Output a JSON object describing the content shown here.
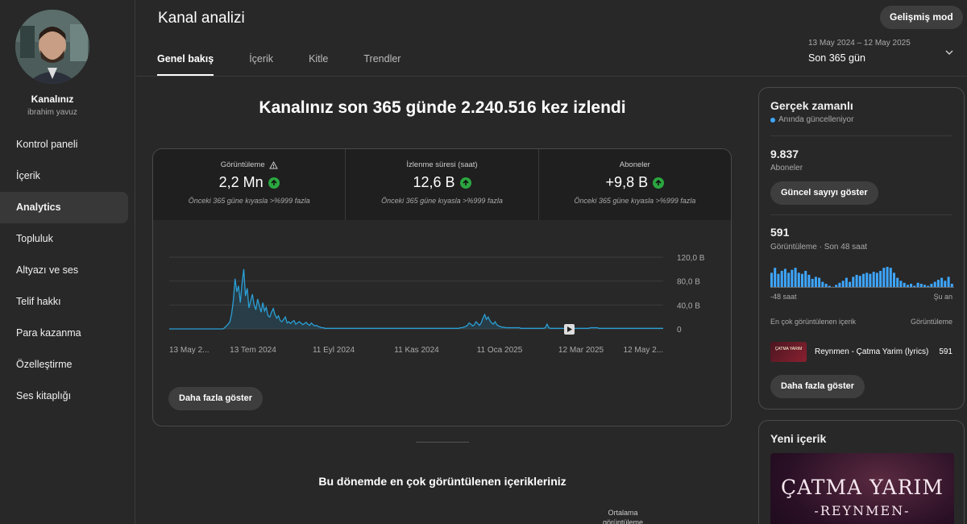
{
  "sidebar": {
    "channel_name": "Kanalınız",
    "channel_handle": "ibrahim yavuz",
    "items": [
      {
        "label": "Kontrol paneli"
      },
      {
        "label": "İçerik"
      },
      {
        "label": "Analytics",
        "active": true
      },
      {
        "label": "Topluluk"
      },
      {
        "label": "Altyazı ve ses"
      },
      {
        "label": "Telif hakkı"
      },
      {
        "label": "Para kazanma"
      },
      {
        "label": "Özelleştirme"
      },
      {
        "label": "Ses kitaplığı"
      }
    ]
  },
  "header": {
    "title": "Kanal analizi",
    "advanced_mode": "Gelişmiş mod",
    "tabs": [
      {
        "label": "Genel bakış",
        "active": true
      },
      {
        "label": "İçerik"
      },
      {
        "label": "Kitle"
      },
      {
        "label": "Trendler"
      }
    ],
    "date_range": "13 May 2024 – 12 May 2025",
    "date_label": "Son 365 gün"
  },
  "main": {
    "headline": "Kanalınız son 365 günde 2.240.516 kez izlendi",
    "metrics": [
      {
        "label": "Görüntüleme",
        "value": "2,2 Mn",
        "comparison": "Önceki 365 güne kıyasla >%999 fazla"
      },
      {
        "label": "İzlenme süresi (saat)",
        "value": "12,6 B",
        "comparison": "Önceki 365 güne kıyasla >%999 fazla"
      },
      {
        "label": "Aboneler",
        "value": "+9,8 B",
        "comparison": "Önceki 365 güne kıyasla >%999 fazla"
      }
    ],
    "more_button": "Daha fazla göster",
    "section_title": "Bu dönemde en çok görüntülenen içerikleriniz",
    "avg_col_line1": "Ortalama",
    "avg_col_line2": "görüntüleme"
  },
  "chart_data": {
    "type": "area",
    "series": [
      {
        "values": [
          0,
          0,
          0,
          0,
          0,
          0,
          0,
          0,
          0,
          0,
          0,
          0,
          0,
          0,
          0,
          0,
          0,
          0,
          0,
          0,
          0,
          0,
          0,
          0,
          0,
          0,
          0,
          0,
          0,
          0,
          0,
          0,
          2,
          5,
          8,
          12,
          25,
          48,
          84,
          62,
          72,
          44,
          75,
          100,
          55,
          68,
          35,
          47,
          58,
          40,
          32,
          50,
          39,
          28,
          44,
          30,
          36,
          22,
          20,
          28,
          34,
          24,
          18,
          22,
          14,
          12,
          16,
          20,
          10,
          12,
          9,
          12,
          14,
          8,
          10,
          12,
          10,
          7,
          9,
          11,
          8,
          6,
          10,
          7,
          5,
          6,
          4,
          3,
          2,
          2,
          1,
          1,
          1,
          1,
          1,
          1,
          1,
          1,
          1,
          1,
          1,
          1,
          1,
          1,
          1,
          1,
          1,
          1,
          1,
          1,
          1,
          1,
          1,
          1,
          1,
          1,
          1,
          1,
          1,
          1,
          1,
          1,
          1,
          1,
          1,
          1,
          1,
          1,
          1,
          1,
          1,
          1,
          1,
          1,
          1,
          1,
          1,
          1,
          1,
          1,
          1,
          1,
          1,
          1,
          1,
          1,
          1,
          1,
          1,
          1,
          1,
          1,
          1,
          1,
          1,
          1,
          1,
          1,
          1,
          1,
          1,
          1,
          1,
          1,
          1,
          1,
          1,
          1,
          2,
          2,
          3,
          4,
          6,
          10,
          8,
          5,
          7,
          12,
          9,
          6,
          10,
          18,
          24,
          16,
          20,
          14,
          10,
          8,
          12,
          7,
          5,
          4,
          3,
          3,
          2,
          2,
          2,
          2,
          2,
          2,
          2,
          2,
          2,
          1,
          1,
          1,
          1,
          1,
          1,
          1,
          1,
          1,
          1,
          1,
          1,
          1,
          1,
          2,
          8,
          2,
          1,
          1,
          1,
          1,
          1,
          1,
          1,
          1,
          1,
          1,
          1,
          1,
          1,
          1,
          1,
          1,
          1,
          1,
          1,
          1,
          1,
          1,
          1,
          2,
          2,
          2,
          2,
          2,
          1,
          1,
          1,
          1,
          1,
          1,
          1,
          1,
          1,
          1,
          1,
          1,
          1,
          1,
          1,
          1,
          1,
          1,
          1,
          1,
          1,
          1,
          1,
          1,
          1,
          1,
          1,
          1,
          1,
          1,
          1,
          1,
          1,
          1,
          1,
          1,
          1,
          1
        ]
      }
    ],
    "ylim": [
      0,
      120
    ],
    "y_ticks": [
      "120,0 B",
      "80,0 B",
      "40,0 B",
      "0"
    ],
    "x_ticks": [
      "13 May 2...",
      "13 Tem 2024",
      "11 Eyl 2024",
      "11 Kas 2024",
      "11 Oca 2025",
      "12 Mar 2025",
      "12 May 2..."
    ],
    "grid": true
  },
  "realtime": {
    "title": "Gerçek zamanlı",
    "live_text": "Anında güncelleniyor",
    "subscribers_value": "9.837",
    "subscribers_label": "Aboneler",
    "show_count_button": "Güncel sayıyı göster",
    "views_value": "591",
    "views_label": "Görüntüleme · Son 48 saat",
    "axis_left": "-48 saat",
    "axis_right": "Şu an",
    "bars": [
      15,
      20,
      14,
      17,
      19,
      15,
      18,
      20,
      15,
      14,
      17,
      13,
      9,
      11,
      10,
      6,
      4,
      2,
      1,
      3,
      5,
      7,
      10,
      6,
      11,
      13,
      12,
      14,
      15,
      14,
      16,
      15,
      17,
      20,
      21,
      20,
      15,
      10,
      7,
      5,
      3,
      4,
      2,
      5,
      4,
      3,
      2,
      4,
      6,
      8,
      10,
      7,
      11,
      4
    ],
    "top_header_left": "En çok görüntülenen içerik",
    "top_header_right": "Görüntüleme",
    "top_video_title": "Reynmen - Çatma Yarim (lyrics)",
    "top_video_count": "591",
    "more_button": "Daha fazla göster",
    "thumb_caption": "ÇATMA YARIM"
  },
  "new_content": {
    "title": "Yeni içerik",
    "thumb_title": "ÇATMA YARIM",
    "thumb_sub": "-REYNMEN-"
  },
  "colors": {
    "accent_blue": "#3ea6ff",
    "chart_line": "#2a9fd6",
    "bars": "#3ea6ff",
    "up_arrow": "#2ba640"
  }
}
